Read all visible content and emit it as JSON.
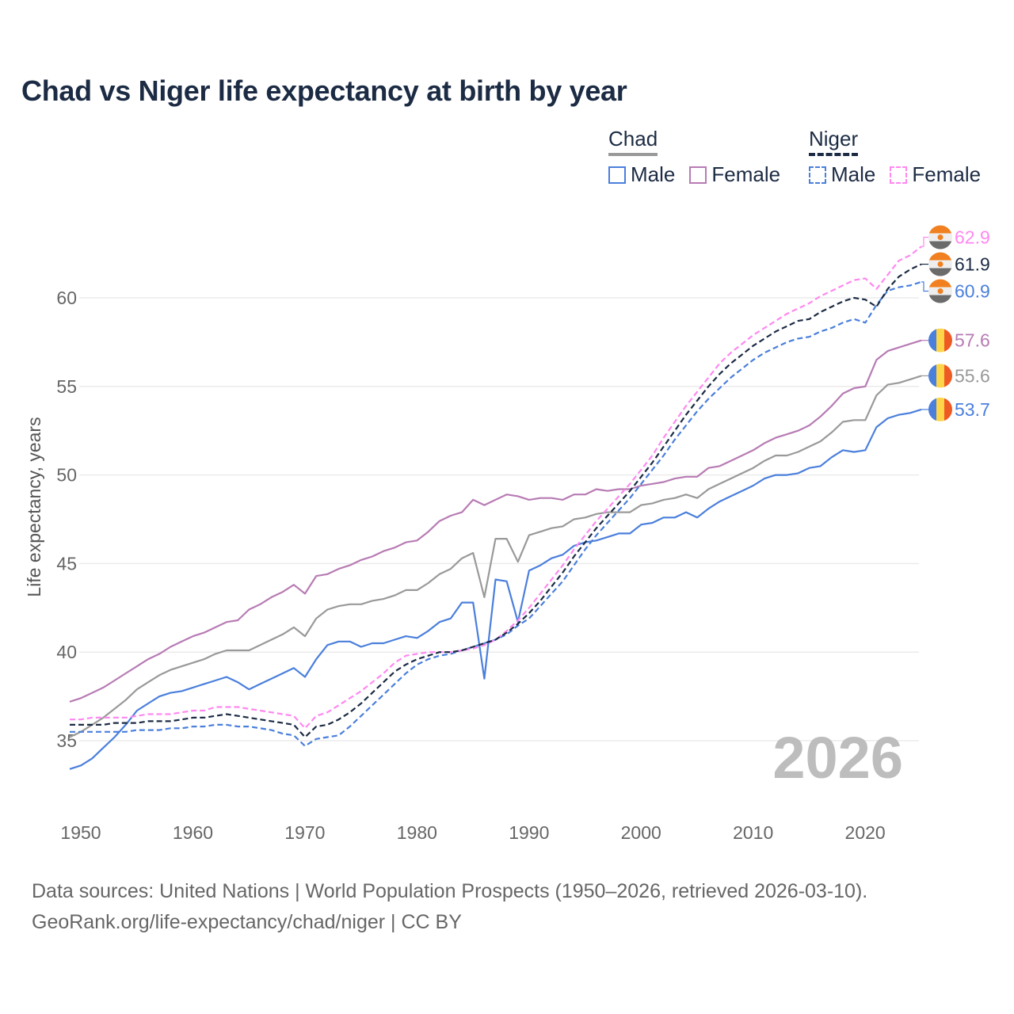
{
  "title": "Chad vs Niger life expectancy at birth by year",
  "legend": {
    "groups": [
      {
        "name": "Chad",
        "underline_color": "#999999",
        "items": [
          {
            "label": "Male",
            "color": "#4a7fdc",
            "dashed": false
          },
          {
            "label": "Female",
            "color": "#b77bb4",
            "dashed": false
          }
        ]
      },
      {
        "name": "Niger",
        "underline_color": "#1c2b44",
        "items": [
          {
            "label": "Male",
            "color": "#4a7fdc",
            "dashed": true
          },
          {
            "label": "Female",
            "color": "#ff88f0",
            "dashed": true
          }
        ]
      }
    ]
  },
  "year_watermark": "2026",
  "source_lines": [
    "Data sources: United Nations | World Population Prospects (1950–2026, retrieved 2026-03-10).",
    "GeoRank.org/life-expectancy/chad/niger | CC BY"
  ],
  "chart_data": {
    "type": "line",
    "title": "Chad vs Niger life expectancy at birth by year",
    "xlabel": "",
    "ylabel": "Life expectancy, years",
    "xlim": [
      1950,
      2026
    ],
    "ylim": [
      32.5,
      64
    ],
    "x_ticks": [
      1950,
      1960,
      1970,
      1980,
      1990,
      2000,
      2010,
      2020
    ],
    "y_ticks": [
      35,
      40,
      45,
      50,
      55,
      60
    ],
    "grid": "horizontal",
    "legend_position": "top-right",
    "x_start": 1950,
    "series": [
      {
        "name": "Chad Male",
        "country": "Chad",
        "color": "#4a7fdc",
        "dashed": false,
        "end_label": "53.7",
        "flag": "chad",
        "values": [
          33.4,
          33.6,
          34.0,
          34.6,
          35.2,
          35.9,
          36.7,
          37.1,
          37.5,
          37.7,
          37.8,
          38.0,
          38.2,
          38.4,
          38.6,
          38.3,
          37.9,
          38.2,
          38.5,
          38.8,
          39.1,
          38.6,
          39.6,
          40.4,
          40.6,
          40.6,
          40.3,
          40.5,
          40.5,
          40.7,
          40.9,
          40.8,
          41.2,
          41.7,
          41.9,
          42.8,
          42.8,
          38.5,
          44.1,
          44.0,
          41.7,
          44.6,
          44.9,
          45.3,
          45.5,
          46.0,
          46.2,
          46.3,
          46.5,
          46.7,
          46.7,
          47.2,
          47.3,
          47.6,
          47.6,
          47.9,
          47.6,
          48.1,
          48.5,
          48.8,
          49.1,
          49.4,
          49.8,
          50.0,
          50.0,
          50.1,
          50.4,
          50.5,
          51.0,
          51.4,
          51.3,
          51.4,
          52.7,
          53.2,
          53.4,
          53.5,
          53.7
        ]
      },
      {
        "name": "Chad Female",
        "country": "Chad",
        "color": "#b77bb4",
        "dashed": false,
        "end_label": "57.6",
        "flag": "chad",
        "values": [
          37.2,
          37.4,
          37.7,
          38.0,
          38.4,
          38.8,
          39.2,
          39.6,
          39.9,
          40.3,
          40.6,
          40.9,
          41.1,
          41.4,
          41.7,
          41.8,
          42.4,
          42.7,
          43.1,
          43.4,
          43.8,
          43.3,
          44.3,
          44.4,
          44.7,
          44.9,
          45.2,
          45.4,
          45.7,
          45.9,
          46.2,
          46.3,
          46.8,
          47.4,
          47.7,
          47.9,
          48.6,
          48.3,
          48.6,
          48.9,
          48.8,
          48.6,
          48.7,
          48.7,
          48.6,
          48.9,
          48.9,
          49.2,
          49.1,
          49.2,
          49.2,
          49.4,
          49.5,
          49.6,
          49.8,
          49.9,
          49.9,
          50.4,
          50.5,
          50.8,
          51.1,
          51.4,
          51.8,
          52.1,
          52.3,
          52.5,
          52.8,
          53.3,
          53.9,
          54.6,
          54.9,
          55.0,
          56.5,
          57.0,
          57.2,
          57.4,
          57.6
        ]
      },
      {
        "name": "Chad",
        "country": "Chad",
        "color": "#999999",
        "dashed": false,
        "end_label": "55.6",
        "flag": "chad",
        "values": [
          35.2,
          35.5,
          35.9,
          36.3,
          36.8,
          37.3,
          37.9,
          38.3,
          38.7,
          39.0,
          39.2,
          39.4,
          39.6,
          39.9,
          40.1,
          40.1,
          40.1,
          40.4,
          40.7,
          41.0,
          41.4,
          40.9,
          41.9,
          42.4,
          42.6,
          42.7,
          42.7,
          42.9,
          43.0,
          43.2,
          43.5,
          43.5,
          43.9,
          44.4,
          44.7,
          45.3,
          45.6,
          43.1,
          46.4,
          46.4,
          45.1,
          46.6,
          46.8,
          47.0,
          47.1,
          47.5,
          47.6,
          47.8,
          47.9,
          47.9,
          47.9,
          48.3,
          48.4,
          48.6,
          48.7,
          48.9,
          48.7,
          49.2,
          49.5,
          49.8,
          50.1,
          50.4,
          50.8,
          51.1,
          51.1,
          51.3,
          51.6,
          51.9,
          52.4,
          53.0,
          53.1,
          53.1,
          54.5,
          55.1,
          55.2,
          55.4,
          55.6
        ]
      },
      {
        "name": "Niger Male",
        "country": "Niger",
        "color": "#4a7fdc",
        "dashed": true,
        "end_label": "60.9",
        "flag": "niger",
        "values": [
          35.5,
          35.5,
          35.5,
          35.5,
          35.5,
          35.5,
          35.6,
          35.6,
          35.6,
          35.7,
          35.7,
          35.8,
          35.8,
          35.9,
          35.9,
          35.8,
          35.8,
          35.7,
          35.6,
          35.4,
          35.3,
          34.7,
          35.1,
          35.2,
          35.3,
          35.8,
          36.4,
          37.0,
          37.6,
          38.2,
          38.8,
          39.3,
          39.6,
          39.8,
          39.9,
          40.1,
          40.3,
          40.5,
          40.7,
          41.0,
          41.5,
          41.9,
          42.6,
          43.3,
          44.0,
          44.9,
          45.8,
          46.6,
          47.3,
          48.0,
          48.7,
          49.5,
          50.3,
          51.1,
          52.0,
          52.8,
          53.6,
          54.3,
          54.9,
          55.5,
          56.0,
          56.5,
          56.9,
          57.2,
          57.5,
          57.7,
          57.8,
          58.1,
          58.3,
          58.6,
          58.8,
          58.6,
          59.6,
          60.4,
          60.6,
          60.7,
          60.9
        ]
      },
      {
        "name": "Niger Female",
        "country": "Niger",
        "color": "#ff88f0",
        "dashed": true,
        "end_label": "62.9",
        "flag": "niger",
        "values": [
          36.2,
          36.2,
          36.3,
          36.3,
          36.3,
          36.3,
          36.4,
          36.5,
          36.5,
          36.5,
          36.6,
          36.7,
          36.7,
          36.9,
          36.9,
          36.9,
          36.8,
          36.7,
          36.6,
          36.5,
          36.4,
          35.7,
          36.4,
          36.6,
          37.0,
          37.4,
          37.8,
          38.3,
          38.8,
          39.4,
          39.8,
          39.9,
          40.0,
          40.0,
          40.0,
          40.1,
          40.2,
          40.4,
          40.7,
          41.2,
          41.8,
          42.5,
          43.3,
          44.1,
          44.9,
          45.8,
          46.6,
          47.4,
          48.1,
          48.8,
          49.5,
          50.3,
          51.1,
          52.1,
          53.0,
          53.9,
          54.7,
          55.5,
          56.3,
          56.9,
          57.4,
          57.9,
          58.3,
          58.7,
          59.1,
          59.4,
          59.7,
          60.1,
          60.4,
          60.7,
          61.0,
          61.1,
          60.5,
          61.3,
          62.1,
          62.4,
          62.9
        ]
      },
      {
        "name": "Niger",
        "country": "Niger",
        "color": "#1c2b44",
        "dashed": true,
        "end_label": "61.9",
        "flag": "niger",
        "values": [
          35.9,
          35.9,
          35.9,
          35.9,
          36.0,
          36.0,
          36.0,
          36.1,
          36.1,
          36.1,
          36.2,
          36.3,
          36.3,
          36.4,
          36.5,
          36.4,
          36.3,
          36.2,
          36.1,
          36.0,
          35.9,
          35.2,
          35.8,
          35.9,
          36.2,
          36.6,
          37.1,
          37.7,
          38.3,
          38.9,
          39.3,
          39.6,
          39.8,
          40.0,
          40.0,
          40.1,
          40.3,
          40.5,
          40.7,
          41.1,
          41.6,
          42.2,
          42.9,
          43.7,
          44.5,
          45.4,
          46.2,
          47.0,
          47.7,
          48.4,
          49.1,
          49.9,
          50.7,
          51.6,
          52.5,
          53.4,
          54.2,
          55.0,
          55.7,
          56.3,
          56.8,
          57.3,
          57.7,
          58.1,
          58.4,
          58.7,
          58.8,
          59.2,
          59.5,
          59.8,
          60.0,
          59.9,
          59.5,
          60.5,
          61.2,
          61.6,
          61.9
        ]
      }
    ]
  }
}
